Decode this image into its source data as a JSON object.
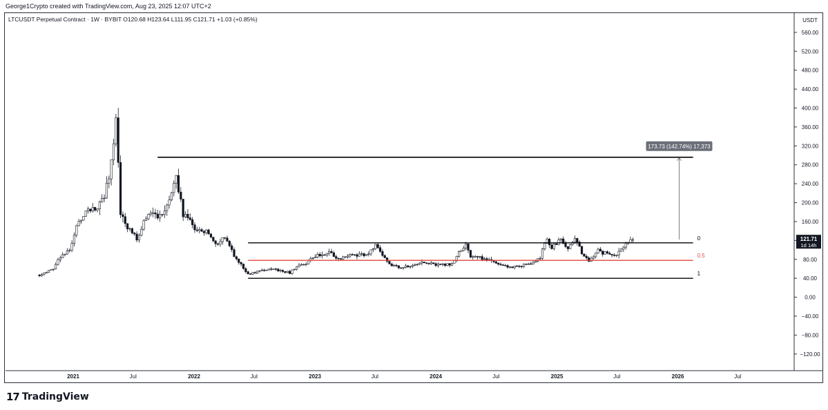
{
  "header": {
    "credit": "George1Crypto created with TradingView.com, Aug 23, 2025 12:07 UTC+2",
    "symbol_line": "LTCUSDT Perpetual Contract · 1W · BYBIT  O120.68  H123.64  L111.95  C121.71  +1.03 (+0.85%)"
  },
  "brand": {
    "mark": "17",
    "name": "TradingView"
  },
  "chart_data": {
    "type": "candlestick",
    "symbol": "LTCUSDT Perpetual Contract",
    "interval": "1W",
    "exchange": "BYBIT",
    "ohlc_last": {
      "open": 120.68,
      "high": 123.64,
      "low": 111.95,
      "close": 121.71,
      "change": 1.03,
      "change_pct": 0.85
    },
    "y_unit": "USDT",
    "ylim": [
      -150,
      580
    ],
    "y_ticks": [
      560,
      520,
      480,
      440,
      400,
      360,
      320,
      280,
      240,
      200,
      160,
      120,
      80,
      40,
      0,
      -40,
      -80,
      -120
    ],
    "y_tick_labels": [
      "560.00",
      "520.00",
      "480.00",
      "440.00",
      "400.00",
      "360.00",
      "320.00",
      "280.00",
      "240.00",
      "200.00",
      "160.00",
      "120.00",
      "80.00",
      "40.00",
      "0.00",
      "−40.00",
      "−80.00",
      "−120.00"
    ],
    "x_ticks": [
      {
        "label": "2021",
        "date": "2021-01-01",
        "bold": true
      },
      {
        "label": "Jul",
        "date": "2021-07-01",
        "bold": false
      },
      {
        "label": "2022",
        "date": "2022-01-01",
        "bold": true
      },
      {
        "label": "Jul",
        "date": "2022-07-01",
        "bold": false
      },
      {
        "label": "2023",
        "date": "2023-01-01",
        "bold": true
      },
      {
        "label": "Jul",
        "date": "2023-07-01",
        "bold": false
      },
      {
        "label": "2024",
        "date": "2024-01-01",
        "bold": true
      },
      {
        "label": "Jul",
        "date": "2024-07-01",
        "bold": false
      },
      {
        "label": "2025",
        "date": "2025-01-01",
        "bold": true
      },
      {
        "label": "Jul",
        "date": "2025-07-01",
        "bold": false
      },
      {
        "label": "2026",
        "date": "2026-01-01",
        "bold": true
      },
      {
        "label": "Jul",
        "date": "2026-07-01",
        "bold": false
      }
    ],
    "price_path": [
      [
        "2020-09-21",
        47
      ],
      [
        "2020-11-02",
        60
      ],
      [
        "2020-11-23",
        85
      ],
      [
        "2020-12-21",
        100
      ],
      [
        "2021-01-11",
        150
      ],
      [
        "2021-02-15",
        185
      ],
      [
        "2021-03-15",
        190
      ],
      [
        "2021-04-05",
        215
      ],
      [
        "2021-04-19",
        250
      ],
      [
        "2021-05-03",
        330
      ],
      [
        "2021-05-10",
        380
      ],
      [
        "2021-05-24",
        180
      ],
      [
        "2021-06-14",
        150
      ],
      [
        "2021-07-12",
        125
      ],
      [
        "2021-08-16",
        180
      ],
      [
        "2021-09-06",
        170
      ],
      [
        "2021-10-04",
        180
      ],
      [
        "2021-10-18",
        200
      ],
      [
        "2021-11-08",
        260
      ],
      [
        "2021-11-29",
        175
      ],
      [
        "2022-01-10",
        140
      ],
      [
        "2022-02-07",
        140
      ],
      [
        "2022-03-07",
        110
      ],
      [
        "2022-04-04",
        125
      ],
      [
        "2022-05-09",
        80
      ],
      [
        "2022-06-13",
        48
      ],
      [
        "2022-07-18",
        55
      ],
      [
        "2022-08-15",
        60
      ],
      [
        "2022-09-19",
        55
      ],
      [
        "2022-10-17",
        52
      ],
      [
        "2022-11-07",
        65
      ],
      [
        "2022-12-05",
        72
      ],
      [
        "2023-01-09",
        88
      ],
      [
        "2023-02-13",
        95
      ],
      [
        "2023-03-13",
        80
      ],
      [
        "2023-04-17",
        92
      ],
      [
        "2023-05-15",
        88
      ],
      [
        "2023-06-12",
        95
      ],
      [
        "2023-07-03",
        112
      ],
      [
        "2023-08-14",
        70
      ],
      [
        "2023-09-11",
        63
      ],
      [
        "2023-10-16",
        68
      ],
      [
        "2023-11-13",
        72
      ],
      [
        "2023-12-11",
        72
      ],
      [
        "2024-01-15",
        68
      ],
      [
        "2024-02-19",
        70
      ],
      [
        "2024-03-11",
        95
      ],
      [
        "2024-04-01",
        110
      ],
      [
        "2024-04-15",
        85
      ],
      [
        "2024-05-20",
        82
      ],
      [
        "2024-06-17",
        78
      ],
      [
        "2024-07-15",
        68
      ],
      [
        "2024-08-12",
        62
      ],
      [
        "2024-09-16",
        67
      ],
      [
        "2024-10-14",
        70
      ],
      [
        "2024-11-11",
        85
      ],
      [
        "2024-12-02",
        125
      ],
      [
        "2024-12-16",
        105
      ],
      [
        "2025-01-13",
        120
      ],
      [
        "2025-02-03",
        100
      ],
      [
        "2025-02-24",
        125
      ],
      [
        "2025-03-17",
        92
      ],
      [
        "2025-04-07",
        75
      ],
      [
        "2025-05-05",
        100
      ],
      [
        "2025-06-02",
        90
      ],
      [
        "2025-06-23",
        85
      ],
      [
        "2025-07-14",
        100
      ],
      [
        "2025-08-04",
        118
      ],
      [
        "2025-08-18",
        121.71
      ]
    ],
    "horizontal_levels": [
      {
        "price": 296,
        "date_from": "2021-09-13",
        "date_to": "2026-02-16",
        "color": "#000000",
        "label": ""
      }
    ],
    "fibonacci": {
      "date_from": "2022-06-13",
      "date_to": "2026-02-16",
      "levels": [
        {
          "ratio": "0",
          "price": 115,
          "color": "#000000"
        },
        {
          "ratio": "0.5",
          "price": 78,
          "color": "#e0463e"
        },
        {
          "ratio": "1",
          "price": 40,
          "color": "#000000"
        }
      ]
    },
    "measure": {
      "date": "2026-01-05",
      "from_price": 122,
      "to_price": 296,
      "label": "173.73 (142.74%) 17,373"
    },
    "last_price_label": "121.71",
    "countdown_label": "1d 14h"
  },
  "colors": {
    "bull": "#26a69a",
    "bear": "#000000",
    "accent_red": "#e0463e",
    "axis": "#2a2e39"
  }
}
